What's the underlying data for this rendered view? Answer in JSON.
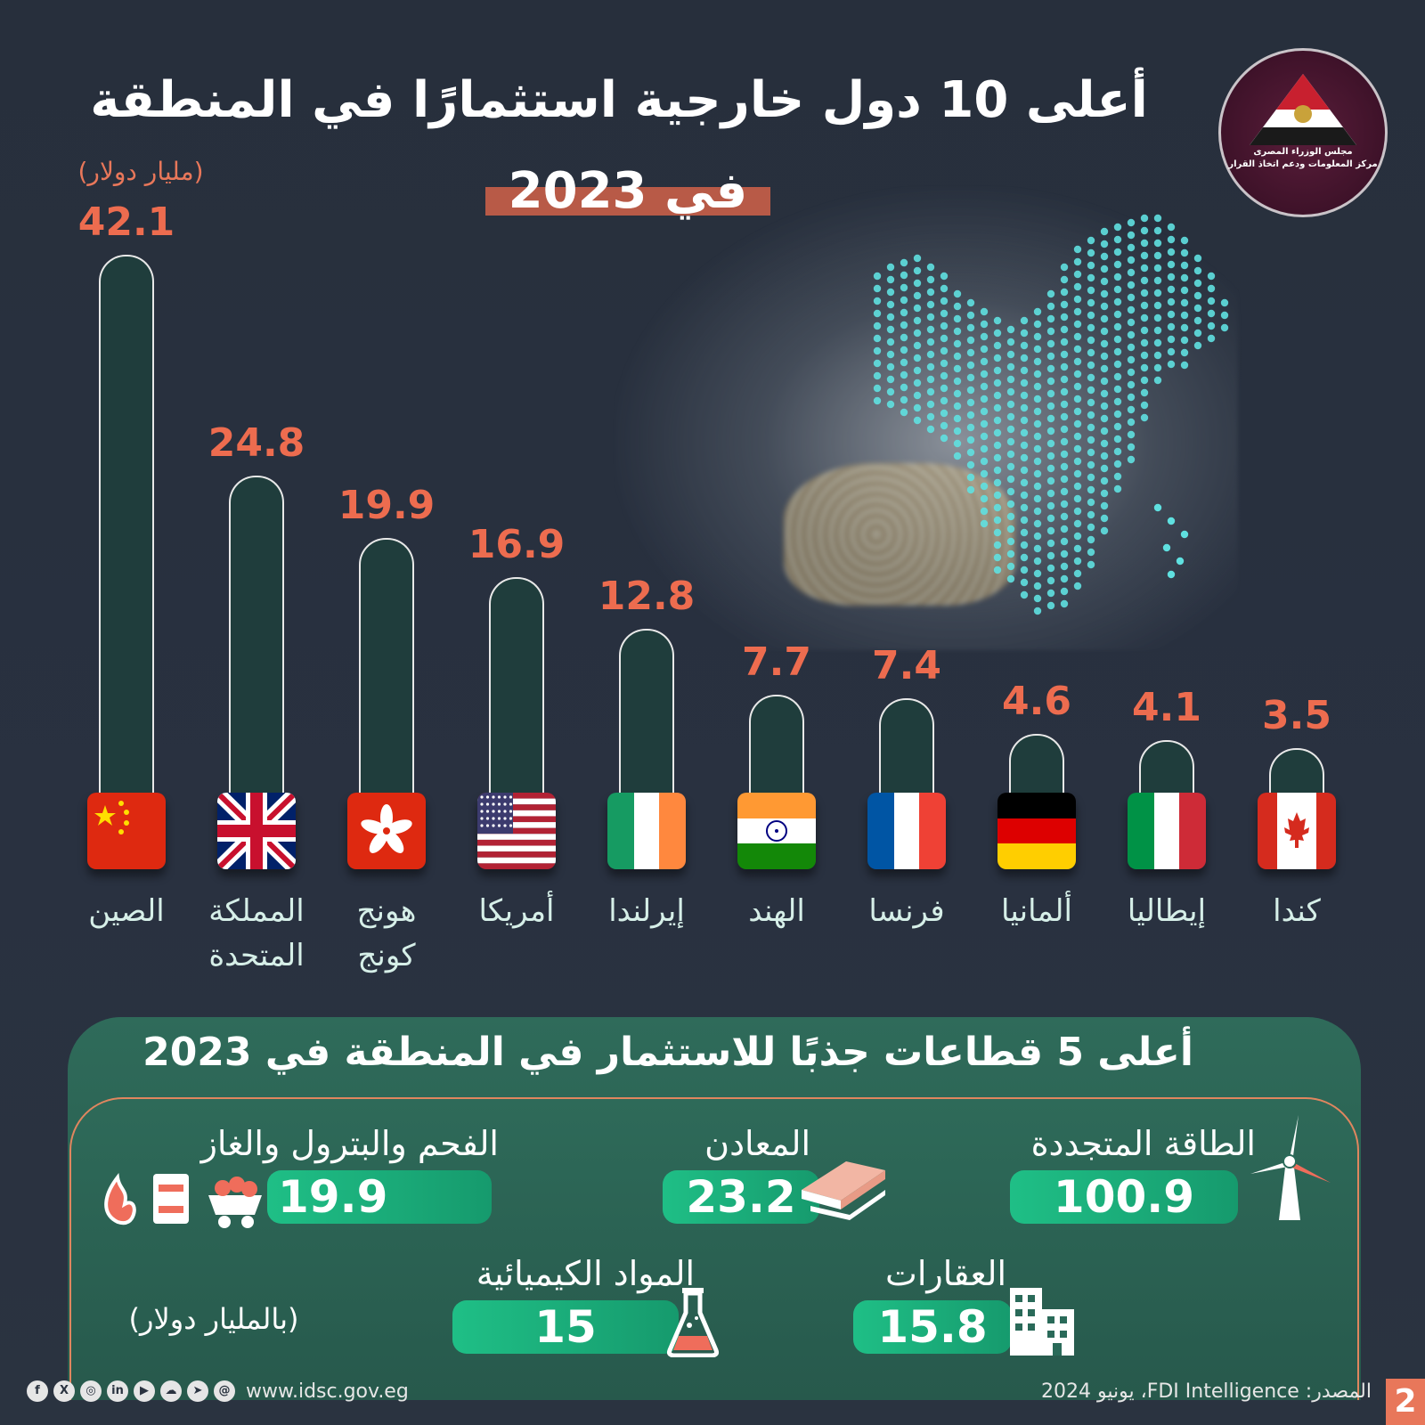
{
  "header": {
    "title_line1": "أعلى 10 دول خارجية استثمارًا في المنطقة",
    "title_line2": "في 2023",
    "unit": "(مليار دولار)"
  },
  "logo": {
    "text_line1": "مجلس الوزراء المصرى",
    "text_line2": "مركز المعلومات ودعم اتخاذ القرار",
    "icon": "eagle-icon"
  },
  "chart_data": {
    "type": "bar",
    "title": "أعلى 10 دول خارجية استثمارًا في المنطقة في 2023",
    "ylabel": "(مليار دولار)",
    "categories": [
      "الصين",
      "المملكة المتحدة",
      "هونج كونج",
      "أمريكا",
      "إيرلندا",
      "الهند",
      "فرنسا",
      "ألمانيا",
      "إيطاليا",
      "كندا"
    ],
    "values": [
      42.1,
      24.8,
      19.9,
      16.9,
      12.8,
      7.7,
      7.4,
      4.6,
      4.1,
      3.5
    ],
    "value_labels": [
      "42.1",
      "24.8",
      "19.9",
      "16.9",
      "12.8",
      "7.7",
      "7.4",
      "4.6",
      "4.1",
      "3.5"
    ],
    "flags": [
      "china-flag-icon",
      "uk-flag-icon",
      "hong-kong-flag-icon",
      "usa-flag-icon",
      "ireland-flag-icon",
      "india-flag-icon",
      "france-flag-icon",
      "germany-flag-icon",
      "italy-flag-icon",
      "canada-flag-icon"
    ],
    "ylim": [
      0,
      42.1
    ],
    "grid": false,
    "bar_color": "#1f3d3c",
    "label_color": "#ed6c4f"
  },
  "sectors": {
    "title": "أعلى 5 قطاعات جذبًا للاستثمار في المنطقة في 2023",
    "unit": "(بالمليار دولار)",
    "items": [
      {
        "label": "الطاقة المتجددة",
        "value": "100.9",
        "icon": "wind-turbine-icon"
      },
      {
        "label": "المعادن",
        "value": "23.2",
        "icon": "metal-sheets-icon"
      },
      {
        "label": "الفحم والبترول والغاز",
        "value": "19.9",
        "icon": "coal-oil-gas-icon"
      },
      {
        "label": "العقارات",
        "value": "15.8",
        "icon": "buildings-icon"
      },
      {
        "label": "المواد الكيميائية",
        "value": "15",
        "icon": "chemical-flask-icon"
      }
    ]
  },
  "footer": {
    "url": "www.idsc.gov.eg",
    "source": "المصدر: FDI Intelligence، يونيو 2024",
    "page_number": "2",
    "social_icons": [
      "facebook-icon",
      "x-icon",
      "instagram-icon",
      "linkedin-icon",
      "youtube-icon",
      "soundcloud-icon",
      "telegram-icon",
      "threads-icon"
    ]
  }
}
